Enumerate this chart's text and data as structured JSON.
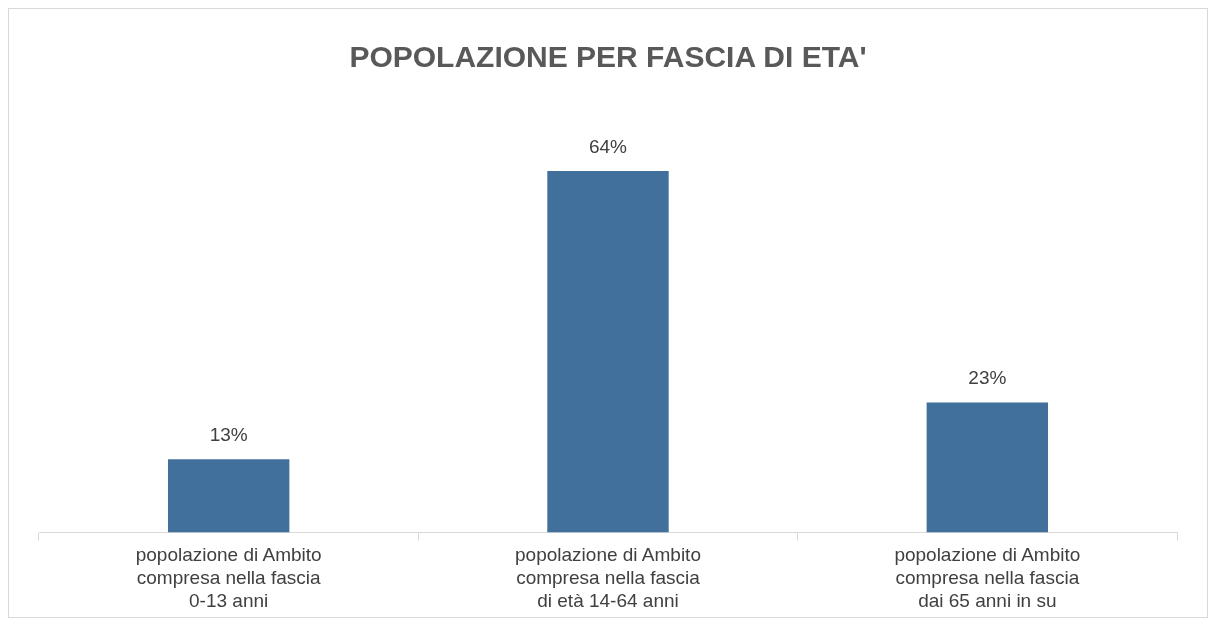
{
  "chart_data": {
    "type": "bar",
    "title": "POPOLAZIONE PER FASCIA DI ETA'",
    "categories": [
      "popolazione di Ambito compresa nella fascia 0-13 anni",
      "popolazione di Ambito compresa nella fascia di età 14-64 anni",
      "popolazione di Ambito compresa nella fascia dai 65 anni in su"
    ],
    "values": [
      13,
      64,
      23
    ],
    "value_labels": [
      "13%",
      "64%",
      "23%"
    ],
    "color": "#41709c",
    "tick_labels": "x",
    "grid": false,
    "legend": false
  }
}
